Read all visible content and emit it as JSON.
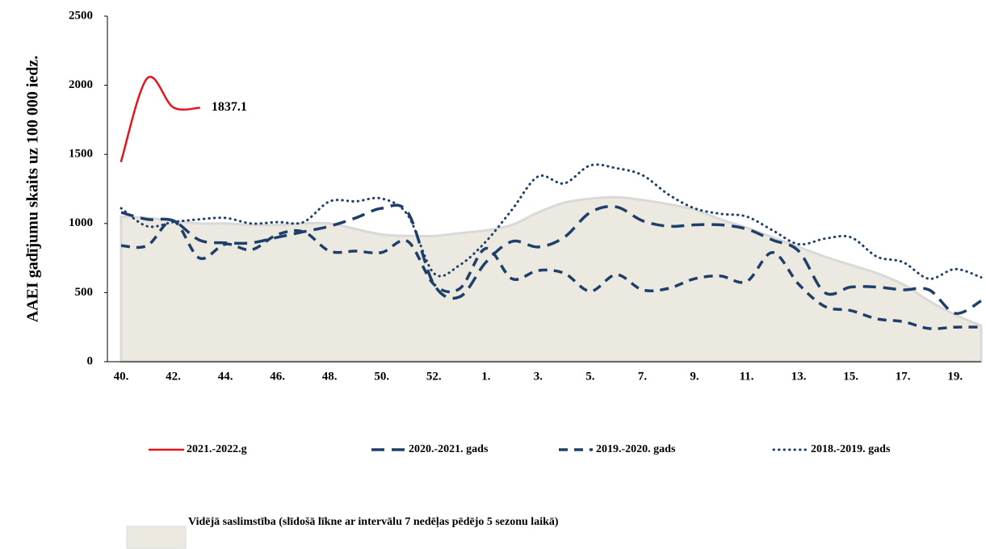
{
  "chart_data": {
    "type": "line",
    "y_label": "AAEI gadījumu skaits uz 100 000 iedz.",
    "categories": [
      "40.",
      null,
      "42.",
      null,
      "44.",
      null,
      "46.",
      null,
      "48.",
      null,
      "50.",
      null,
      "52.",
      null,
      "1.",
      null,
      "3.",
      null,
      "5.",
      null,
      "7.",
      null,
      "9.",
      null,
      "11.",
      null,
      "13.",
      null,
      "15.",
      null,
      "17.",
      null,
      "19.",
      null
    ],
    "ylim": [
      0,
      2500
    ],
    "yticks": [
      0,
      500,
      1000,
      1500,
      2000,
      2500
    ],
    "series": [
      {
        "name": "2021.-2022.g",
        "color": "#e8121a",
        "style": "solid",
        "values": [
          1450,
          2050,
          1840,
          1837.1,
          null,
          null,
          null,
          null,
          null,
          null,
          null,
          null,
          null,
          null,
          null,
          null,
          null,
          null,
          null,
          null,
          null,
          null,
          null,
          null,
          null,
          null,
          null,
          null,
          null,
          null,
          null,
          null,
          null,
          null
        ]
      },
      {
        "name": "2020.-2021. gads",
        "color": "#1f3f6b",
        "style": "long-dash",
        "values": [
          1080,
          1030,
          1020,
          880,
          860,
          860,
          900,
          940,
          980,
          1040,
          1110,
          1080,
          560,
          470,
          720,
          870,
          830,
          900,
          1080,
          1120,
          1020,
          980,
          990,
          990,
          960,
          880,
          800,
          500,
          540,
          540,
          520,
          520,
          350,
          440
        ]
      },
      {
        "name": "2019.-2020. gads",
        "color": "#1f3f6b",
        "style": "dash",
        "values": [
          840,
          840,
          1020,
          750,
          850,
          810,
          920,
          940,
          800,
          800,
          790,
          870,
          560,
          530,
          820,
          600,
          660,
          640,
          510,
          630,
          520,
          530,
          600,
          620,
          580,
          790,
          560,
          400,
          370,
          310,
          290,
          240,
          250,
          250
        ]
      },
      {
        "name": "2018.-2019. gads",
        "color": "#1f3f6b",
        "style": "dotted",
        "values": [
          1110,
          980,
          1010,
          1030,
          1040,
          1000,
          1010,
          1010,
          1160,
          1160,
          1180,
          1060,
          640,
          700,
          870,
          1100,
          1340,
          1290,
          1420,
          1400,
          1350,
          1210,
          1110,
          1070,
          1050,
          950,
          850,
          890,
          900,
          760,
          720,
          600,
          670,
          610
        ]
      },
      {
        "name": "Vidējā saslimstība (slīdošā līkne ar intervālu 7 nedēļas pēdējo 5 sezonu laikā)",
        "color": "#ece9e0",
        "style": "area",
        "values": [
          1050,
          1040,
          1020,
          1000,
          1000,
          990,
          990,
          1000,
          1000,
          960,
          920,
          910,
          910,
          930,
          950,
          990,
          1080,
          1150,
          1180,
          1190,
          1170,
          1140,
          1100,
          1030,
          970,
          900,
          830,
          760,
          700,
          640,
          560,
          440,
          340,
          260
        ]
      }
    ]
  }
}
